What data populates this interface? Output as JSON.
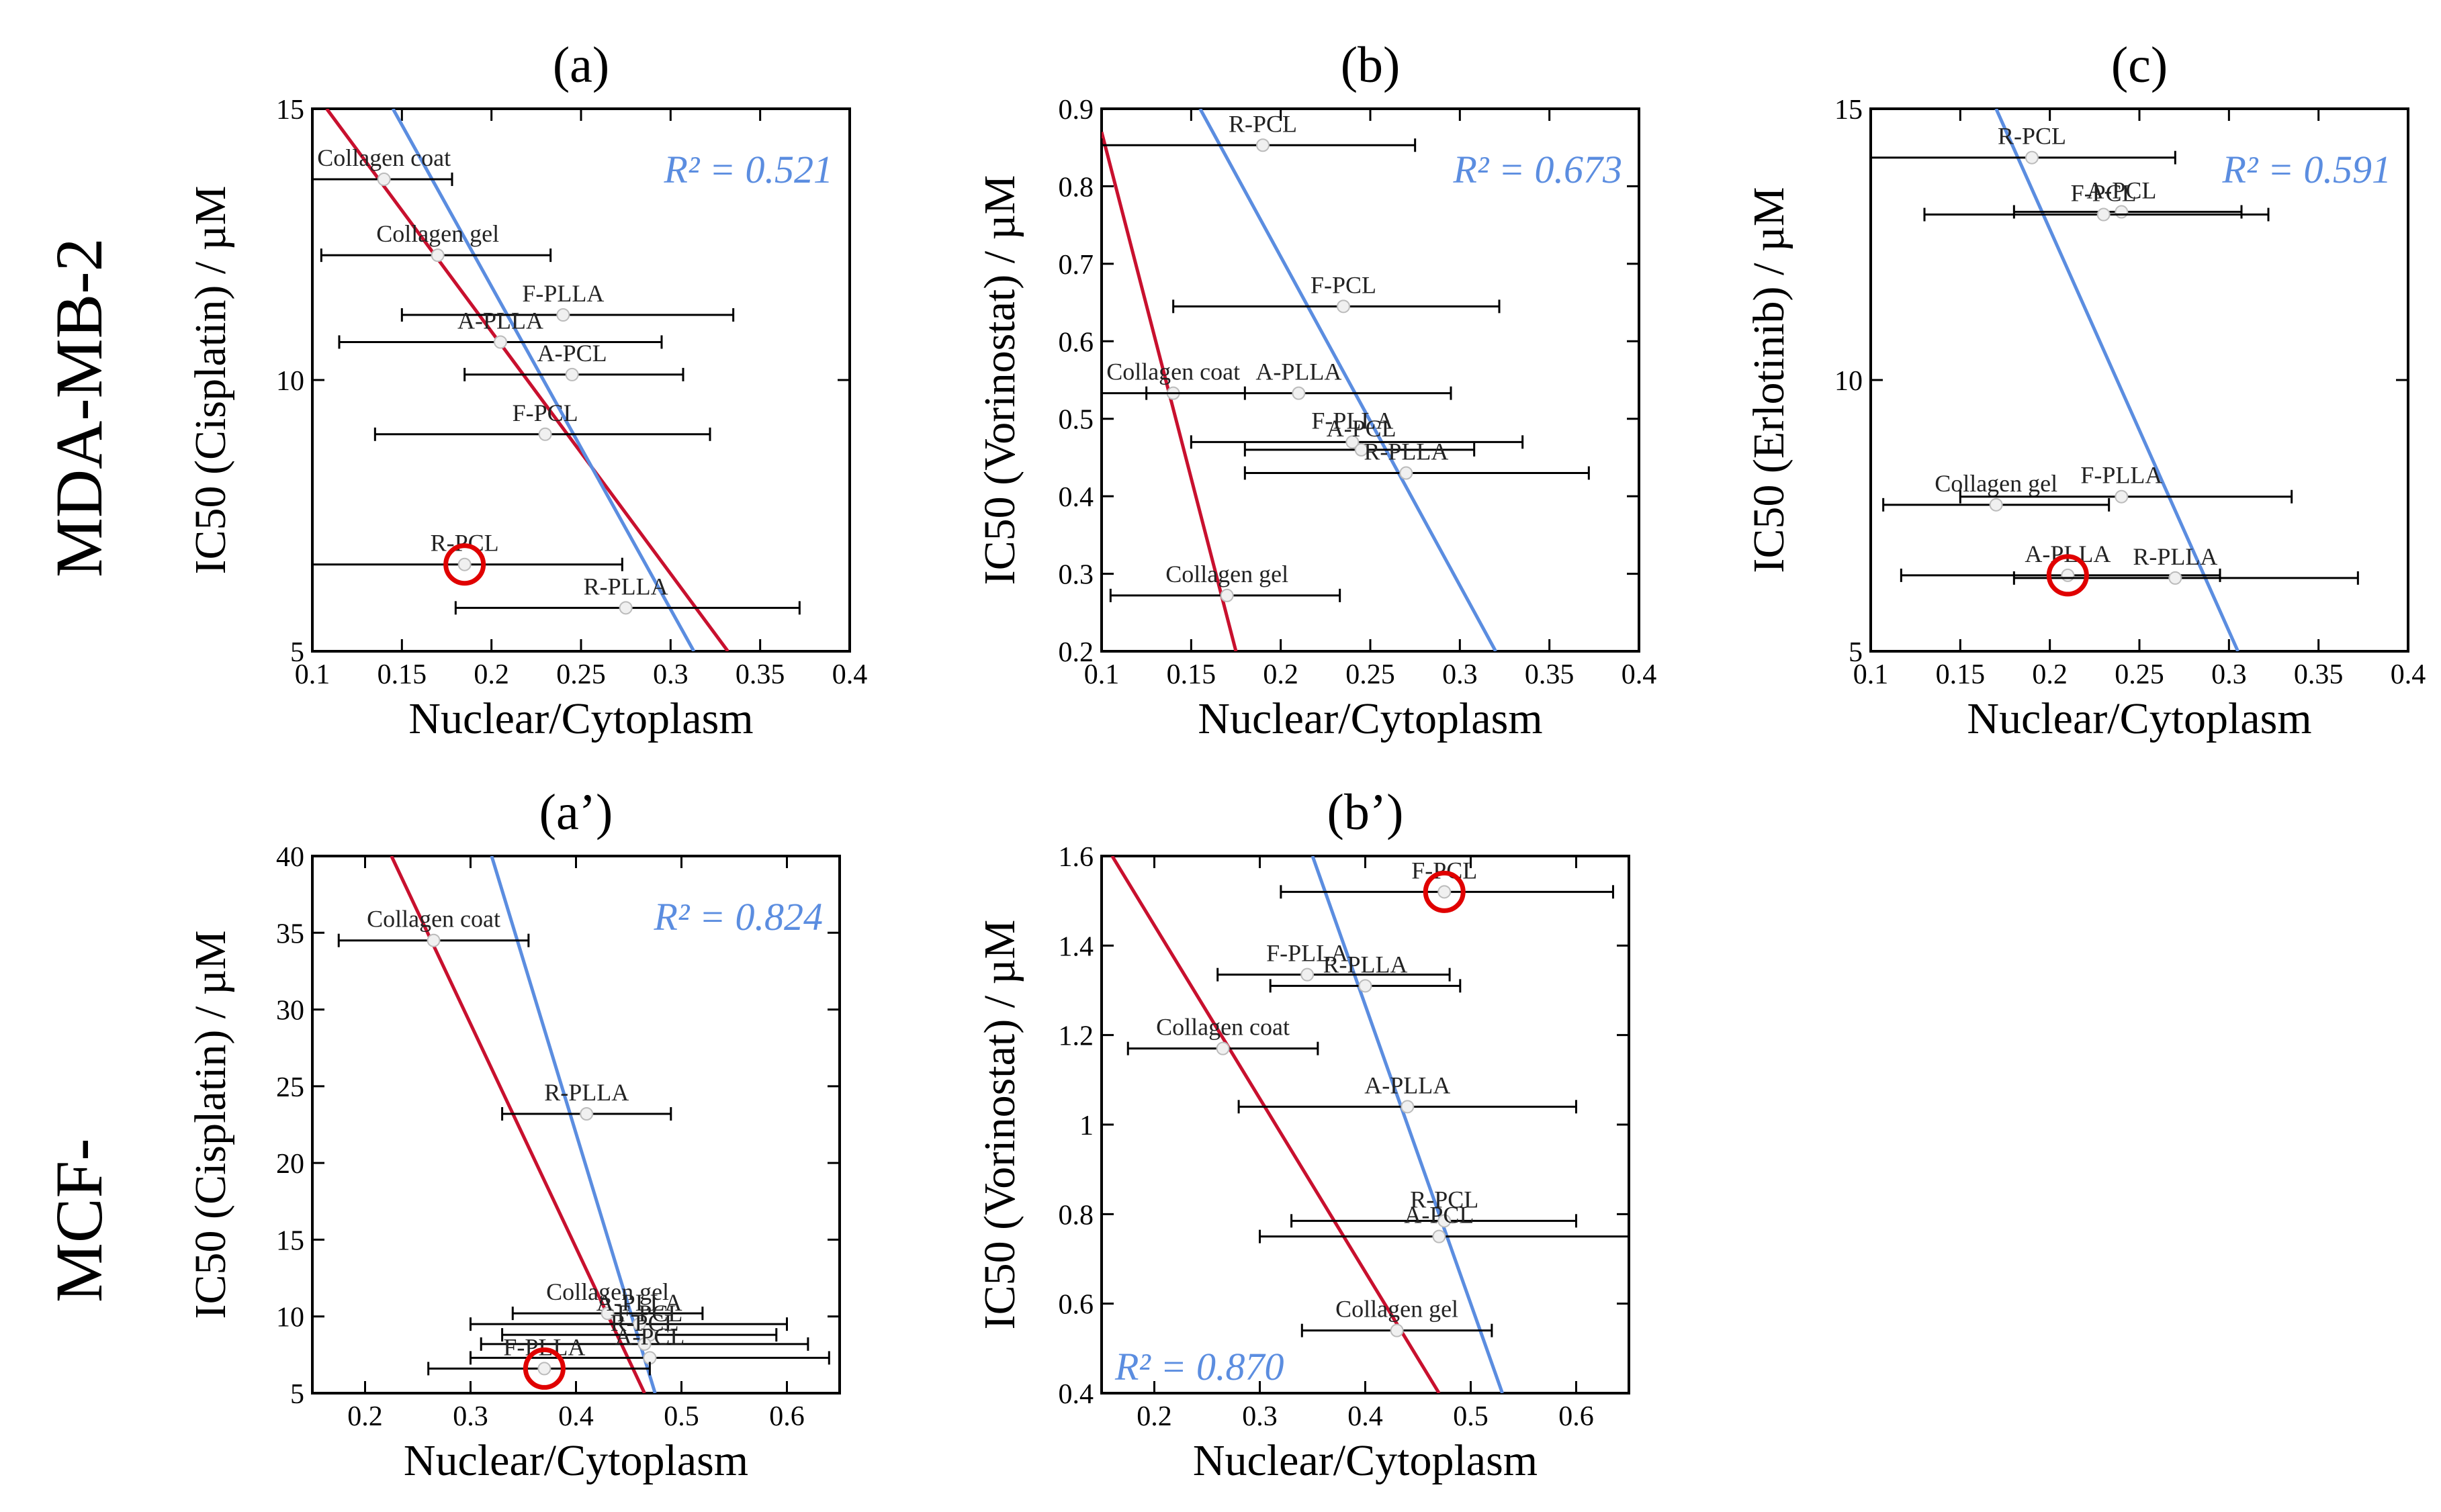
{
  "row_labels": [
    "MDA-MB-2",
    "MCF-"
  ],
  "styles": {
    "red": "#c8102e",
    "blue": "#5b8de0",
    "highlight": "#e00000",
    "axis": "#000000",
    "marker": "#f0f0f0"
  },
  "chart_data": [
    {
      "type": "scatter",
      "panel": "(a)",
      "xlabel": "Nuclear/Cytoplasm",
      "ylabel": "IC50 (Cisplatin) / µM",
      "xlim": [
        0.1,
        0.4
      ],
      "ylim": [
        5,
        15
      ],
      "xticks": [
        0.1,
        0.15,
        0.2,
        0.25,
        0.3,
        0.35,
        0.4
      ],
      "xticklabels": [
        "0.1",
        "0.15",
        "0.2",
        "0.25",
        "0.3",
        "0.35",
        "0.4"
      ],
      "yticks": [
        5,
        10,
        15
      ],
      "yticklabels": [
        "5",
        "10",
        "15"
      ],
      "r2": "R² = 0.521",
      "lines": [
        {
          "color": "red",
          "points": [
            [
              0.108,
              15
            ],
            [
              0.332,
              5
            ]
          ]
        },
        {
          "color": "blue",
          "points": [
            [
              0.145,
              15
            ],
            [
              0.313,
              5
            ]
          ]
        }
      ],
      "points": [
        {
          "label": "Collagen coat",
          "x": 0.14,
          "y": 13.7,
          "xerr": [
            0.1,
            0.178
          ]
        },
        {
          "label": "Collagen gel",
          "x": 0.17,
          "y": 12.3,
          "xerr": [
            0.105,
            0.233
          ]
        },
        {
          "label": "F-PLLA",
          "x": 0.24,
          "y": 11.2,
          "xerr": [
            0.15,
            0.335
          ]
        },
        {
          "label": "A-PLLA",
          "x": 0.205,
          "y": 10.7,
          "xerr": [
            0.115,
            0.295
          ]
        },
        {
          "label": "A-PCL",
          "x": 0.245,
          "y": 10.1,
          "xerr": [
            0.185,
            0.307
          ]
        },
        {
          "label": "F-PCL",
          "x": 0.23,
          "y": 9.0,
          "xerr": [
            0.135,
            0.322
          ]
        },
        {
          "label": "R-PCL",
          "x": 0.185,
          "y": 6.6,
          "xerr": [
            0.1,
            0.273
          ]
        },
        {
          "label": "R-PLLA",
          "x": 0.275,
          "y": 5.8,
          "xerr": [
            0.18,
            0.372
          ]
        }
      ],
      "highlight": {
        "x": 0.185,
        "y": 6.6
      }
    },
    {
      "type": "scatter",
      "panel": "(b)",
      "xlabel": "Nuclear/Cytoplasm",
      "ylabel": "IC50 (Vorinostat) / µM",
      "xlim": [
        0.1,
        0.4
      ],
      "ylim": [
        0.2,
        0.9
      ],
      "xticks": [
        0.1,
        0.15,
        0.2,
        0.25,
        0.3,
        0.35,
        0.4
      ],
      "xticklabels": [
        "0.1",
        "0.15",
        "0.2",
        "0.25",
        "0.3",
        "0.35",
        "0.4"
      ],
      "yticks": [
        0.2,
        0.3,
        0.4,
        0.5,
        0.6,
        0.7,
        0.8,
        0.9
      ],
      "yticklabels": [
        "0.2",
        "0.3",
        "0.4",
        "0.5",
        "0.6",
        "0.7",
        "0.8",
        "0.9"
      ],
      "r2": "R² = 0.673",
      "lines": [
        {
          "color": "red",
          "points": [
            [
              0.1,
              0.87
            ],
            [
              0.175,
              0.2
            ]
          ]
        },
        {
          "color": "blue",
          "points": [
            [
              0.155,
              0.9
            ],
            [
              0.32,
              0.2
            ]
          ]
        }
      ],
      "points": [
        {
          "label": "R-PCL",
          "x": 0.19,
          "y": 0.853,
          "xerr": [
            0.1,
            0.275
          ]
        },
        {
          "label": "F-PCL",
          "x": 0.235,
          "y": 0.645,
          "xerr": [
            0.14,
            0.322
          ]
        },
        {
          "label": "Collagen coat",
          "x": 0.14,
          "y": 0.533,
          "xerr": [
            0.1,
            0.18
          ]
        },
        {
          "label": "A-PLLA",
          "x": 0.21,
          "y": 0.533,
          "xerr": [
            0.125,
            0.295
          ]
        },
        {
          "label": "F-PLLA",
          "x": 0.24,
          "y": 0.47,
          "xerr": [
            0.15,
            0.335
          ]
        },
        {
          "label": "A-PCL",
          "x": 0.245,
          "y": 0.46,
          "xerr": [
            0.18,
            0.308
          ]
        },
        {
          "label": "R-PLLA",
          "x": 0.27,
          "y": 0.43,
          "xerr": [
            0.18,
            0.372
          ]
        },
        {
          "label": "Collagen gel",
          "x": 0.17,
          "y": 0.272,
          "xerr": [
            0.105,
            0.233
          ]
        }
      ]
    },
    {
      "type": "scatter",
      "panel": "(c)",
      "xlabel": "Nuclear/Cytoplasm",
      "ylabel": "IC50 (Erlotinib) / µM",
      "xlim": [
        0.1,
        0.4
      ],
      "ylim": [
        5,
        15
      ],
      "xticks": [
        0.1,
        0.15,
        0.2,
        0.25,
        0.3,
        0.35,
        0.4
      ],
      "xticklabels": [
        "0.1",
        "0.15",
        "0.2",
        "0.25",
        "0.3",
        "0.35",
        "0.4"
      ],
      "yticks": [
        5,
        10,
        15
      ],
      "yticklabels": [
        "5",
        "10",
        "15"
      ],
      "r2": "R² = 0.591",
      "lines": [
        {
          "color": "blue",
          "points": [
            [
              0.17,
              15
            ],
            [
              0.305,
              5
            ]
          ]
        }
      ],
      "points": [
        {
          "label": "R-PCL",
          "x": 0.19,
          "y": 14.1,
          "xerr": [
            0.1,
            0.27
          ]
        },
        {
          "label": "A-PCL",
          "x": 0.24,
          "y": 13.1,
          "xerr": [
            0.18,
            0.307
          ]
        },
        {
          "label": "F-PCL",
          "x": 0.23,
          "y": 13.05,
          "xerr": [
            0.13,
            0.322
          ]
        },
        {
          "label": "F-PLLA",
          "x": 0.24,
          "y": 7.85,
          "xerr": [
            0.15,
            0.335
          ]
        },
        {
          "label": "Collagen gel",
          "x": 0.17,
          "y": 7.7,
          "xerr": [
            0.107,
            0.233
          ]
        },
        {
          "label": "A-PLLA",
          "x": 0.21,
          "y": 6.4,
          "xerr": [
            0.117,
            0.295
          ]
        },
        {
          "label": "R-PLLA",
          "x": 0.27,
          "y": 6.35,
          "xerr": [
            0.18,
            0.372
          ]
        }
      ],
      "highlight": {
        "x": 0.21,
        "y": 6.4
      }
    },
    {
      "type": "scatter",
      "panel": "(a’)",
      "xlabel": "Nuclear/Cytoplasm",
      "ylabel": "IC50 (Cisplatin) / µM",
      "xlim": [
        0.15,
        0.65
      ],
      "ylim": [
        5,
        40
      ],
      "xticks": [
        0.2,
        0.3,
        0.4,
        0.5,
        0.6
      ],
      "xticklabels": [
        "0.2",
        "0.3",
        "0.4",
        "0.5",
        "0.6"
      ],
      "yticks": [
        5,
        10,
        15,
        20,
        25,
        30,
        35,
        40
      ],
      "yticklabels": [
        "5",
        "10",
        "15",
        "20",
        "25",
        "30",
        "35",
        "40"
      ],
      "r2": "R² = 0.824",
      "lines": [
        {
          "color": "red",
          "points": [
            [
              0.225,
              40
            ],
            [
              0.465,
              5
            ]
          ]
        },
        {
          "color": "blue",
          "points": [
            [
              0.32,
              40
            ],
            [
              0.475,
              5
            ]
          ]
        }
      ],
      "points": [
        {
          "label": "Collagen coat",
          "x": 0.265,
          "y": 34.5,
          "xerr": [
            0.175,
            0.355
          ]
        },
        {
          "label": "R-PLLA",
          "x": 0.41,
          "y": 23.2,
          "xerr": [
            0.33,
            0.49
          ]
        },
        {
          "label": "Collagen gel",
          "x": 0.43,
          "y": 10.2,
          "xerr": [
            0.34,
            0.52
          ]
        },
        {
          "label": "A-PLLA",
          "x": 0.46,
          "y": 9.5,
          "xerr": [
            0.3,
            0.6
          ]
        },
        {
          "label": "F-PCL",
          "x": 0.47,
          "y": 8.8,
          "xerr": [
            0.33,
            0.59
          ]
        },
        {
          "label": "R-PCL",
          "x": 0.465,
          "y": 8.2,
          "xerr": [
            0.31,
            0.62
          ]
        },
        {
          "label": "A-PCL",
          "x": 0.47,
          "y": 7.3,
          "xerr": [
            0.3,
            0.64
          ]
        },
        {
          "label": "F-PLLA",
          "x": 0.37,
          "y": 6.6,
          "xerr": [
            0.26,
            0.47
          ]
        }
      ],
      "highlight": {
        "x": 0.37,
        "y": 6.6
      }
    },
    {
      "type": "scatter",
      "panel": "(b’)",
      "xlabel": "Nuclear/Cytoplasm",
      "ylabel": "IC50 (Vorinostat) / µM",
      "xlim": [
        0.15,
        0.65
      ],
      "ylim": [
        0.4,
        1.6
      ],
      "xticks": [
        0.2,
        0.3,
        0.4,
        0.5,
        0.6
      ],
      "xticklabels": [
        "0.2",
        "0.3",
        "0.4",
        "0.5",
        "0.6"
      ],
      "yticks": [
        0.4,
        0.6,
        0.8,
        1.0,
        1.2,
        1.4,
        1.6
      ],
      "yticklabels": [
        "0.4",
        "0.6",
        "0.8",
        "1",
        "1.2",
        "1.4",
        "1.6"
      ],
      "r2": "R² = 0.870",
      "lines": [
        {
          "color": "red",
          "points": [
            [
              0.16,
              1.6
            ],
            [
              0.47,
              0.4
            ]
          ]
        },
        {
          "color": "blue",
          "points": [
            [
              0.35,
              1.6
            ],
            [
              0.53,
              0.4
            ]
          ]
        }
      ],
      "points": [
        {
          "label": "F-PCL",
          "x": 0.475,
          "y": 1.52,
          "xerr": [
            0.32,
            0.635
          ]
        },
        {
          "label": "F-PLLA",
          "x": 0.345,
          "y": 1.335,
          "xerr": [
            0.26,
            0.48
          ]
        },
        {
          "label": "R-PLLA",
          "x": 0.4,
          "y": 1.31,
          "xerr": [
            0.31,
            0.49
          ]
        },
        {
          "label": "Collagen coat",
          "x": 0.265,
          "y": 1.17,
          "xerr": [
            0.175,
            0.355
          ]
        },
        {
          "label": "A-PLLA",
          "x": 0.44,
          "y": 1.04,
          "xerr": [
            0.28,
            0.6
          ]
        },
        {
          "label": "R-PCL",
          "x": 0.475,
          "y": 0.785,
          "xerr": [
            0.33,
            0.6
          ]
        },
        {
          "label": "A-PCL",
          "x": 0.47,
          "y": 0.75,
          "xerr": [
            0.3,
            0.65
          ]
        },
        {
          "label": "Collagen gel",
          "x": 0.43,
          "y": 0.54,
          "xerr": [
            0.34,
            0.52
          ]
        }
      ],
      "highlight": {
        "x": 0.475,
        "y": 1.52
      }
    }
  ]
}
